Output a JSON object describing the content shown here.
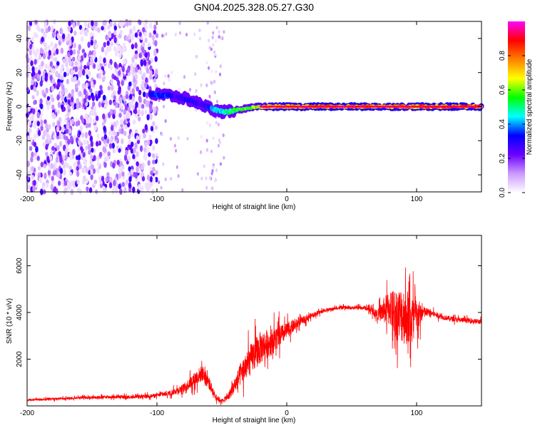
{
  "title": "GN04.2025.328.05.27.G30",
  "chart_data": [
    {
      "type": "heatmap",
      "xlabel": "Height of straight line (km)",
      "ylabel": "Frequency (Hz)",
      "xlim": [
        -200,
        150
      ],
      "ylim": [
        -50,
        50
      ],
      "xticks": [
        -200,
        -100,
        0,
        100
      ],
      "yticks": [
        -40,
        -20,
        0,
        20,
        40
      ],
      "grid": false,
      "colorbar": {
        "label": "Normalized spectral amplitude",
        "range": [
          0,
          1
        ],
        "ticks": [
          "0.0",
          "0.2",
          "0.4",
          "0.6",
          "0.8"
        ],
        "colors": [
          "#ffffff",
          "#cc99ff",
          "#6a00ff",
          "#0000ff",
          "#00ffff",
          "#00ff00",
          "#ffff00",
          "#ff8000",
          "#ff0000",
          "#ff00ff"
        ]
      },
      "ridge": {
        "x": [
          -105,
          -95,
          -85,
          -75,
          -65,
          -55,
          -50,
          -45,
          -40,
          -30,
          -20,
          -10,
          0,
          10,
          20,
          40,
          60,
          80,
          90,
          95,
          100,
          105,
          150
        ],
        "y": [
          7,
          7,
          6,
          4,
          1,
          -2,
          -3,
          -3,
          -2,
          -1,
          0,
          0,
          0,
          0,
          0,
          0,
          0,
          0,
          0,
          0,
          0,
          0,
          0
        ],
        "amplitude": [
          0.35,
          0.4,
          0.3,
          0.35,
          0.3,
          0.45,
          0.5,
          0.55,
          0.6,
          0.65,
          0.75,
          0.8,
          0.85,
          0.85,
          0.9,
          0.9,
          0.9,
          0.85,
          0.85,
          0.8,
          0.8,
          0.9,
          0.9
        ]
      }
    },
    {
      "type": "line",
      "xlabel": "Height of straight line (km)",
      "ylabel": "SNR (10 * v/v)",
      "xlim": [
        -200,
        150
      ],
      "ylim": [
        0,
        7300
      ],
      "xticks": [
        -200,
        -100,
        0,
        100
      ],
      "yticks": [
        2000,
        4000,
        6000
      ],
      "grid": false,
      "color": "#ff0000",
      "series": [
        {
          "x": [
            -200,
            -180,
            -160,
            -140,
            -120,
            -110,
            -100,
            -90,
            -80,
            -75,
            -70,
            -65,
            -60,
            -55,
            -50,
            -45,
            -40,
            -35,
            -30,
            -25,
            -20,
            -10,
            0,
            10,
            20,
            30,
            40,
            50,
            60,
            65,
            70,
            75,
            80,
            85,
            90,
            95,
            100,
            105,
            110,
            120,
            130,
            140,
            150
          ],
          "y": [
            250,
            300,
            350,
            380,
            380,
            400,
            450,
            550,
            750,
            950,
            1200,
            1400,
            1000,
            400,
            200,
            400,
            900,
            1400,
            1800,
            2200,
            2500,
            2800,
            3200,
            3600,
            3900,
            4100,
            4200,
            4200,
            4200,
            4100,
            3900,
            4100,
            4200,
            3900,
            3900,
            3700,
            3800,
            4000,
            4000,
            3800,
            3700,
            3650,
            3600
          ],
          "noise": [
            60,
            70,
            80,
            90,
            100,
            110,
            120,
            160,
            250,
            350,
            450,
            500,
            400,
            200,
            120,
            250,
            500,
            700,
            900,
            1000,
            1000,
            800,
            500,
            250,
            150,
            100,
            100,
            100,
            120,
            200,
            300,
            800,
            1200,
            1600,
            1800,
            1700,
            1200,
            400,
            200,
            150,
            150,
            150,
            150
          ]
        }
      ]
    }
  ]
}
